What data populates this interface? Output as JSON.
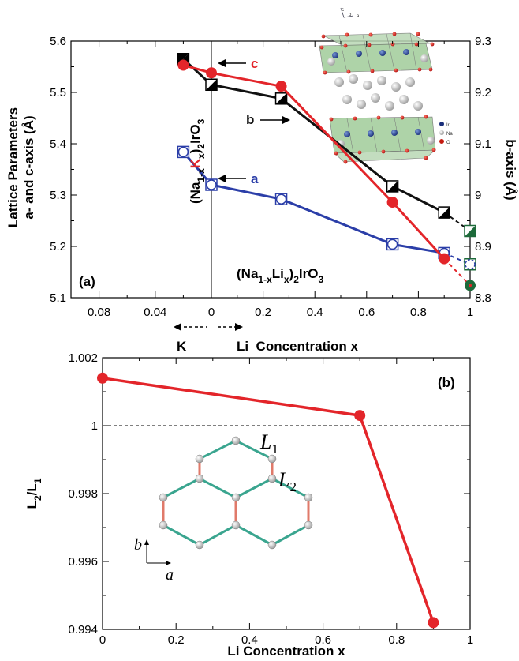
{
  "chart_data": [
    {
      "panel_label": "(a)",
      "type": "line",
      "title": "",
      "xlabel": "Li  Concentration x",
      "ylabel_left": [
        "Lattice Parameters",
        "a- and c-axis (Å)"
      ],
      "ylabel_right": "b-axis (Å)",
      "x_tick_labels": [
        "0.08",
        "0.04",
        "0",
        "0.2",
        "0.4",
        "0.6",
        "0.8",
        "1"
      ],
      "y_left_tick_labels": [
        "5.1",
        "5.2",
        "5.3",
        "5.4",
        "5.5",
        "5.6"
      ],
      "y_right_tick_labels": [
        "8.8",
        "8.9",
        "9",
        "9.1",
        "9.2",
        "9.3"
      ],
      "xlim": [
        -0.1,
        1
      ],
      "ylim_left": [
        5.1,
        5.6
      ],
      "ylim_right": [
        8.8,
        9.3
      ],
      "grid": false,
      "k_axis_label": "K",
      "k_compound_label": {
        "pre": "(Na",
        "sub1": "1-x",
        "mid": "K",
        "sub2": "x",
        "post": ")",
        "sub3": "2",
        "end": "IrO",
        "sub4": "3"
      },
      "li_compound_label": {
        "pre": "(Na",
        "sub1": "1-x",
        "mid": "Li",
        "sub2": "x",
        "post": ")",
        "sub3": "2",
        "end": "IrO",
        "sub4": "3"
      },
      "series": [
        {
          "name": "c",
          "axis": "left",
          "color": "#e3252a",
          "x": [
            -0.02,
            0,
            0.27,
            0.7,
            0.9
          ],
          "y": [
            5.553,
            5.538,
            5.512,
            5.286,
            5.176
          ],
          "dashed_x": [
            0.9,
            1
          ],
          "dashed_y": [
            5.176,
            5.124
          ],
          "end_color": "#1d6a3a"
        },
        {
          "name": "b",
          "axis": "right",
          "color": "#111111",
          "x": [
            -0.02,
            0,
            0.27,
            0.7,
            0.9
          ],
          "y": [
            9.265,
            9.215,
            9.188,
            9.017,
            8.966
          ],
          "dashed_x": [
            0.9,
            1
          ],
          "dashed_y": [
            8.966,
            8.93
          ],
          "end_color": "#1d6a3a"
        },
        {
          "name": "a",
          "axis": "left",
          "color": "#2b3ea8",
          "x": [
            -0.02,
            0,
            0.27,
            0.7,
            0.9
          ],
          "y": [
            5.384,
            5.32,
            5.292,
            5.204,
            5.187
          ],
          "dashed_x": [
            0.9,
            1
          ],
          "dashed_y": [
            5.187,
            5.165
          ],
          "end_color": "#2b3ea8"
        }
      ],
      "inset": {
        "type": "crystal-structure",
        "legend": [
          "Ir",
          "Na",
          "O"
        ],
        "axes": [
          "c",
          "b",
          "a"
        ]
      }
    },
    {
      "panel_label": "(b)",
      "type": "line",
      "title": "",
      "xlabel": "Li Concentration x",
      "ylabel": {
        "main": "L",
        "sub1": "2",
        "sep": "/L",
        "sub2": "1"
      },
      "x_tick_labels": [
        "0",
        "0.2",
        "0.4",
        "0.6",
        "0.8",
        "1"
      ],
      "y_tick_labels": [
        "0.994",
        "0.996",
        "0.998",
        "1",
        "1.002"
      ],
      "xlim": [
        0,
        1
      ],
      "ylim": [
        0.994,
        1.002
      ],
      "reference_line": 1,
      "grid": false,
      "series": [
        {
          "name": "",
          "color": "#e3252a",
          "x": [
            0,
            0.7,
            0.9
          ],
          "y": [
            1.0014,
            1.0003,
            0.9942
          ]
        }
      ],
      "inset": {
        "type": "honeycomb",
        "labels": {
          "L1": "L",
          "L1_sub": "1",
          "L2": "L",
          "L2_sub": "2",
          "b": "b",
          "a": "a"
        }
      }
    }
  ]
}
